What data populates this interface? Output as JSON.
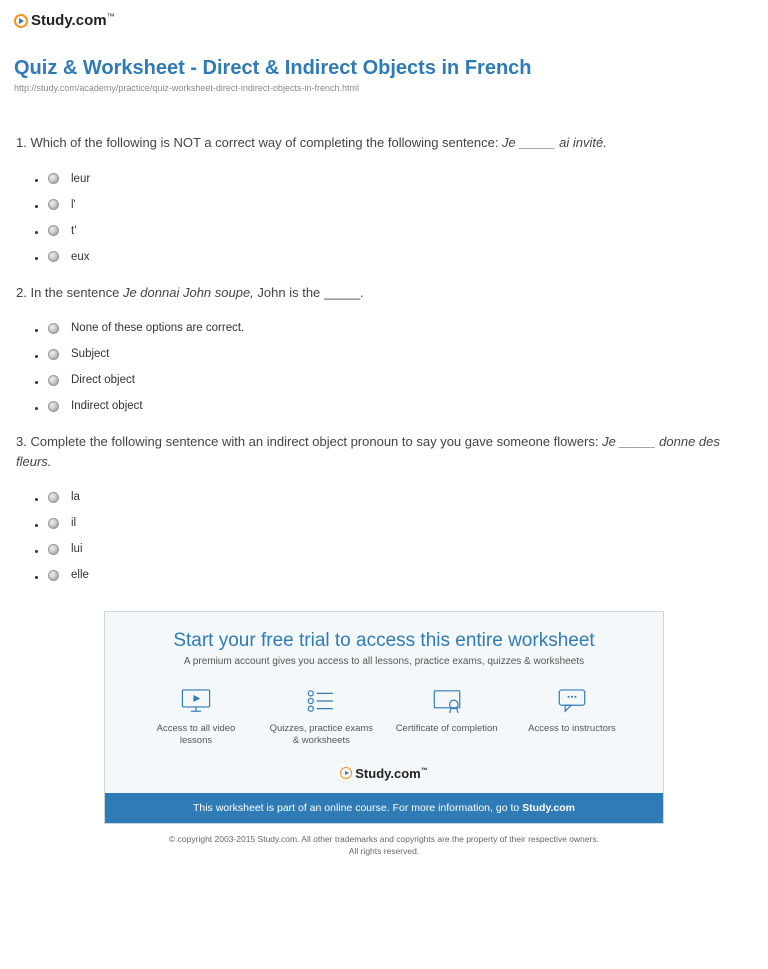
{
  "brand": {
    "name": "Study.com",
    "tm": "™"
  },
  "heading": "Quiz & Worksheet - Direct & Indirect Objects in French",
  "url": "http://study.com/academy/practice/quiz-worksheet-direct-indirect-objects-in-french.html",
  "questions": [
    {
      "num": "1.",
      "prefix": "Which of the following is NOT a correct way of completing the following sentence: ",
      "italic1": "Je _____ ai invit&eacute.",
      "mid": "",
      "italic2": "",
      "suffix": "",
      "options": [
        "leur",
        "l'",
        "t'",
        "eux"
      ]
    },
    {
      "num": "2.",
      "prefix": "In the sentence ",
      "italic1": "Je donnai John soupe,",
      "mid": " John is the _____.",
      "italic2": "",
      "suffix": "",
      "options": [
        "None of these options are correct.",
        "Subject",
        "Direct object",
        "Indirect object"
      ]
    },
    {
      "num": "3.",
      "prefix": "Complete the following sentence with an indirect object pronoun to say you gave someone flowers: ",
      "italic1": "Je _____ donne des fleurs.",
      "mid": "",
      "italic2": "",
      "suffix": "",
      "options": [
        "la",
        "il",
        "lui",
        "elle"
      ]
    }
  ],
  "promo": {
    "title": "Start your free trial to access this entire worksheet",
    "sub": "A premium account gives you access to all lessons, practice exams, quizzes & worksheets",
    "features": [
      "Access to all video lessons",
      "Quizzes, practice exams & worksheets",
      "Certificate of completion",
      "Access to instructors"
    ],
    "bar_prefix": "This worksheet is part of an online course. For more information, go to ",
    "bar_link": "Study.com"
  },
  "copyright": {
    "line1": "© copyright 2003-2015 Study.com. All other trademarks and copyrights are the property of their respective owners.",
    "line2": "All rights reserved."
  },
  "colors": {
    "accent": "#2e7bb6",
    "orange": "#f7931e",
    "text": "#333333",
    "muted": "#888888",
    "box_border": "#c9d6de",
    "box_bg": "#f5f8fa"
  }
}
